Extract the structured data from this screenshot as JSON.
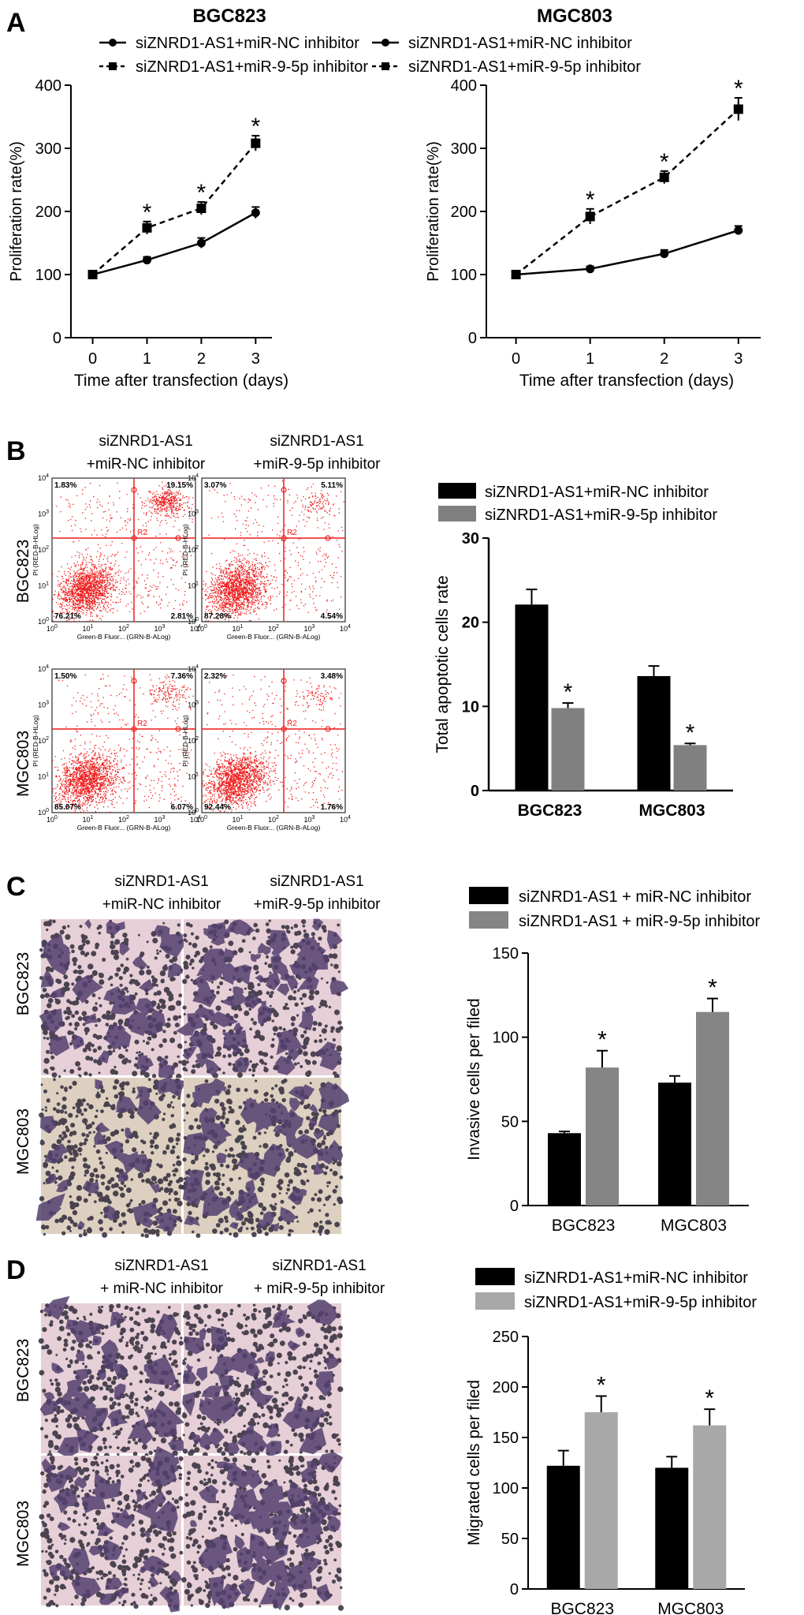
{
  "panel_labels": {
    "a": "A",
    "b": "B",
    "c": "C",
    "d": "D"
  },
  "panel_a": {
    "legend": [
      "siZNRD1-AS1+miR-NC inhibitor",
      "siZNRD1-AS1+miR-9-5p inhibitor"
    ],
    "significance_marker": "*"
  },
  "panel_b": {
    "col_headers": [
      {
        "line1": "siZNRD1-AS1",
        "line2": "+miR-NC inhibitor"
      },
      {
        "line1": "siZNRD1-AS1",
        "line2": "+miR-9-5p inhibitor"
      }
    ],
    "row_labels": [
      "BGC823",
      "MGC803"
    ],
    "flow_axis": {
      "ylabel": "PI (RED-B-HLog)",
      "xlabel": "Green-B Fluor... (GRN-B-ALog)",
      "gate": "R2",
      "ticks": [
        "10",
        "10",
        "10",
        "10",
        "10"
      ],
      "tick_exponents": [
        "0",
        "1",
        "2",
        "3",
        "4"
      ]
    },
    "flow_plots": [
      {
        "row": "BGC823",
        "col": "siZNRD1-AS1+miR-NC inhibitor",
        "q_ul": "1.83%",
        "q_ur": "19.15%",
        "q_ll": "76.21%",
        "q_lr": "2.81%"
      },
      {
        "row": "BGC823",
        "col": "siZNRD1-AS1+miR-9-5p inhibitor",
        "q_ul": "3.07%",
        "q_ur": "5.11%",
        "q_ll": "87.28%",
        "q_lr": "4.54%"
      },
      {
        "row": "MGC803",
        "col": "siZNRD1-AS1+miR-NC inhibitor",
        "q_ul": "1.50%",
        "q_ur": "7.36%",
        "q_ll": "85.07%",
        "q_lr": "6.07%"
      },
      {
        "row": "MGC803",
        "col": "siZNRD1-AS1+miR-9-5p inhibitor",
        "q_ul": "2.32%",
        "q_ur": "3.48%",
        "q_ll": "92.44%",
        "q_lr": "1.76%"
      }
    ]
  },
  "panel_c": {
    "col_headers": [
      {
        "line1": "siZNRD1-AS1",
        "line2": "+miR-NC inhibitor"
      },
      {
        "line1": "siZNRD1-AS1",
        "line2": "+miR-9-5p inhibitor"
      }
    ],
    "row_labels": [
      "BGC823",
      "MGC803"
    ]
  },
  "panel_d": {
    "col_headers": [
      {
        "line1": "siZNRD1-AS1",
        "line2": "+ miR-NC inhibitor"
      },
      {
        "line1": "siZNRD1-AS1",
        "line2": "+ miR-9-5p inhibitor"
      }
    ],
    "row_labels": [
      "BGC823",
      "MGC803"
    ]
  },
  "colors": {
    "black": "#000000",
    "gray_b": "#808080",
    "gray_c": "#858585",
    "gray_d": "#a8a8a8",
    "flow_red": "#ee1c1c",
    "micro_bg": "#e6cfd6",
    "micro_bg_alt": "#ddd0c0",
    "cell": "#52406f"
  },
  "chart_data": [
    {
      "id": "a-bgc823",
      "type": "line",
      "title": "BGC823",
      "xlabel": "Time after transfection (days)",
      "ylabel": "Proliferation rate(%)",
      "x": [
        0,
        1,
        2,
        3
      ],
      "xlim": [
        -0.4,
        3.3
      ],
      "ylim": [
        0,
        400
      ],
      "yticks": [
        0,
        100,
        200,
        300,
        400
      ],
      "series": [
        {
          "name": "siZNRD1-AS1+miR-NC inhibitor",
          "values": [
            100,
            123,
            150,
            198
          ],
          "errors": [
            3,
            5,
            8,
            9
          ],
          "style": "solid",
          "marker": "circle"
        },
        {
          "name": "siZNRD1-AS1+miR-9-5p inhibitor",
          "values": [
            100,
            174,
            205,
            308
          ],
          "errors": [
            3,
            10,
            10,
            12
          ],
          "style": "dashed",
          "marker": "square"
        }
      ],
      "significant": [
        false,
        true,
        true,
        true
      ]
    },
    {
      "id": "a-mgc803",
      "type": "line",
      "title": "MGC803",
      "xlabel": "Time after transfection (days)",
      "ylabel": "Proliferation rate(%)",
      "x": [
        0,
        1,
        2,
        3
      ],
      "xlim": [
        -0.4,
        3.3
      ],
      "ylim": [
        0,
        400
      ],
      "yticks": [
        0,
        100,
        200,
        300,
        400
      ],
      "series": [
        {
          "name": "siZNRD1-AS1+miR-NC inhibitor",
          "values": [
            100,
            109,
            133,
            170
          ],
          "errors": [
            3,
            4,
            6,
            7
          ],
          "style": "solid",
          "marker": "circle"
        },
        {
          "name": "siZNRD1-AS1+miR-9-5p inhibitor",
          "values": [
            100,
            192,
            254,
            362
          ],
          "errors": [
            3,
            12,
            10,
            18
          ],
          "style": "dashed",
          "marker": "square"
        }
      ],
      "significant": [
        false,
        true,
        true,
        true
      ]
    },
    {
      "id": "b-bars",
      "type": "bar",
      "categories": [
        "BGC823",
        "MGC803"
      ],
      "ylabel": "Total apoptotic cells rate",
      "ylim": [
        0,
        30
      ],
      "yticks": [
        0,
        10,
        20,
        30
      ],
      "series": [
        {
          "name": "siZNRD1-AS1+miR-NC inhibitor",
          "values": [
            22.1,
            13.6
          ],
          "errors": [
            1.8,
            1.2
          ]
        },
        {
          "name": "siZNRD1-AS1+miR-9-5p inhibitor",
          "values": [
            9.8,
            5.4
          ],
          "errors": [
            0.6,
            0.2
          ]
        }
      ],
      "significant_series": 1
    },
    {
      "id": "c-bars",
      "type": "bar",
      "categories": [
        "BGC823",
        "MGC803"
      ],
      "ylabel": "Invasive cells per filed",
      "ylim": [
        0,
        150
      ],
      "yticks": [
        0,
        50,
        100,
        150
      ],
      "series": [
        {
          "name": "siZNRD1-AS1 + miR-NC inhibitor",
          "values": [
            43,
            73
          ],
          "errors": [
            1,
            4
          ]
        },
        {
          "name": "siZNRD1-AS1 + miR-9-5p inhibitor",
          "values": [
            82,
            115
          ],
          "errors": [
            10,
            8
          ]
        }
      ],
      "significant_series": 1
    },
    {
      "id": "d-bars",
      "type": "bar",
      "categories": [
        "BGC823",
        "MGC803"
      ],
      "ylabel": "Migrated cells per filed",
      "ylim": [
        0,
        250
      ],
      "yticks": [
        0,
        50,
        100,
        150,
        200,
        250
      ],
      "series": [
        {
          "name": "siZNRD1-AS1+miR-NC inhibitor",
          "values": [
            122,
            120
          ],
          "errors": [
            15,
            11
          ]
        },
        {
          "name": "siZNRD1-AS1+miR-9-5p inhibitor",
          "values": [
            175,
            162
          ],
          "errors": [
            16,
            16
          ]
        }
      ],
      "significant_series": 1
    }
  ]
}
